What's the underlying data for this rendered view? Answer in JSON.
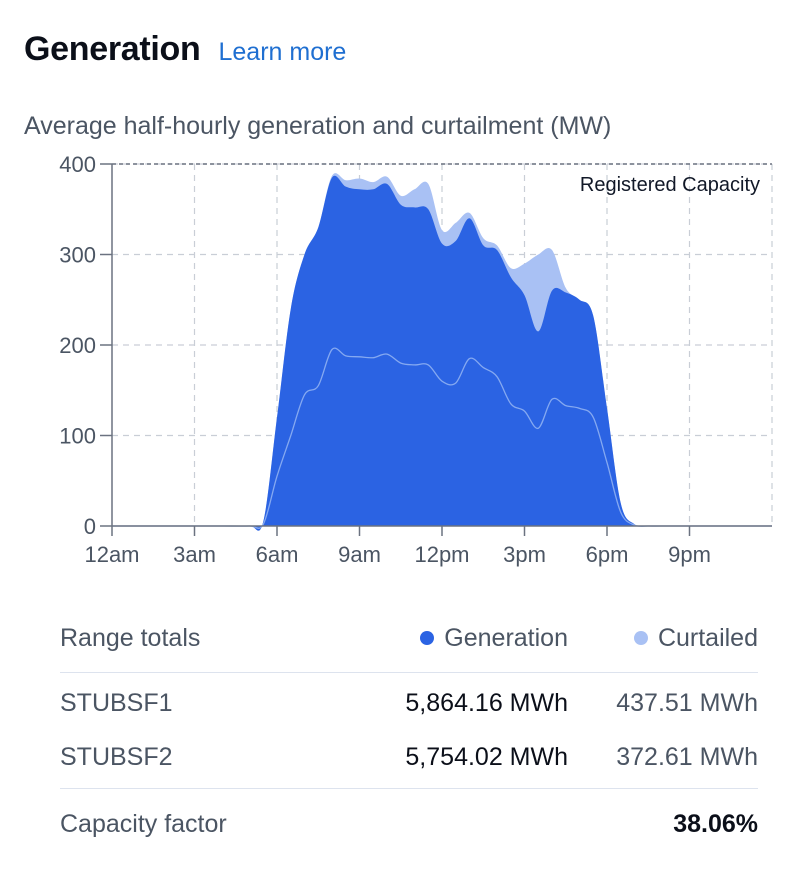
{
  "header": {
    "title": "Generation",
    "learn_more": "Learn more"
  },
  "chart_data": {
    "type": "area",
    "title": "Average half-hourly generation and curtailment (MW)",
    "ylim": [
      0,
      400
    ],
    "yticks": [
      "0",
      "100",
      "200",
      "300",
      "400"
    ],
    "xticks": [
      "12am",
      "3am",
      "6am",
      "9am",
      "12pm",
      "3pm",
      "6pm",
      "9pm"
    ],
    "x_hours": [
      0,
      1,
      2,
      3,
      4,
      5,
      5.5,
      6,
      6.5,
      7,
      7.5,
      8,
      8.5,
      9,
      9.5,
      10,
      10.5,
      11,
      11.5,
      12,
      12.5,
      13,
      13.5,
      14,
      14.5,
      15,
      15.5,
      16,
      16.5,
      17,
      17.5,
      18,
      18.5,
      19,
      19.5,
      20,
      21,
      22,
      23,
      24
    ],
    "series": [
      {
        "name": "Generation",
        "values": [
          0,
          0,
          0,
          0,
          0,
          0,
          5,
          120,
          240,
          300,
          330,
          385,
          375,
          372,
          372,
          378,
          355,
          352,
          350,
          312,
          315,
          340,
          310,
          305,
          275,
          255,
          215,
          260,
          258,
          250,
          232,
          130,
          25,
          2,
          0,
          0,
          0,
          0,
          0,
          0
        ]
      },
      {
        "name": "Curtailed",
        "values": [
          0,
          0,
          0,
          0,
          0,
          0,
          0,
          0,
          0,
          0,
          0,
          2,
          7,
          12,
          8,
          8,
          10,
          20,
          28,
          15,
          20,
          6,
          8,
          5,
          10,
          35,
          85,
          45,
          5,
          0,
          0,
          0,
          0,
          0,
          0,
          0,
          0,
          0,
          0,
          0
        ]
      },
      {
        "name": "STUBSF2",
        "values": [
          0,
          0,
          0,
          0,
          0,
          0,
          2,
          55,
          100,
          145,
          155,
          195,
          188,
          187,
          186,
          190,
          180,
          178,
          178,
          160,
          158,
          185,
          175,
          165,
          135,
          127,
          108,
          140,
          133,
          130,
          120,
          70,
          15,
          1,
          0,
          0,
          0,
          0,
          0,
          0
        ]
      }
    ],
    "annotation": "Registered Capacity",
    "grid": true
  },
  "colors": {
    "generation": "#2b63e3",
    "curtailed": "#a9c1f4",
    "link": "#1f6fd1"
  },
  "totals": {
    "header_label": "Range totals",
    "legend_generation": "Generation",
    "legend_curtailed": "Curtailed",
    "rows": [
      {
        "name": "STUBSF1",
        "generation": "5,864.16 MWh",
        "curtailed": "437.51 MWh"
      },
      {
        "name": "STUBSF2",
        "generation": "5,754.02 MWh",
        "curtailed": "372.61 MWh"
      }
    ],
    "capacity_factor_label": "Capacity factor",
    "capacity_factor_value": "38.06%"
  }
}
